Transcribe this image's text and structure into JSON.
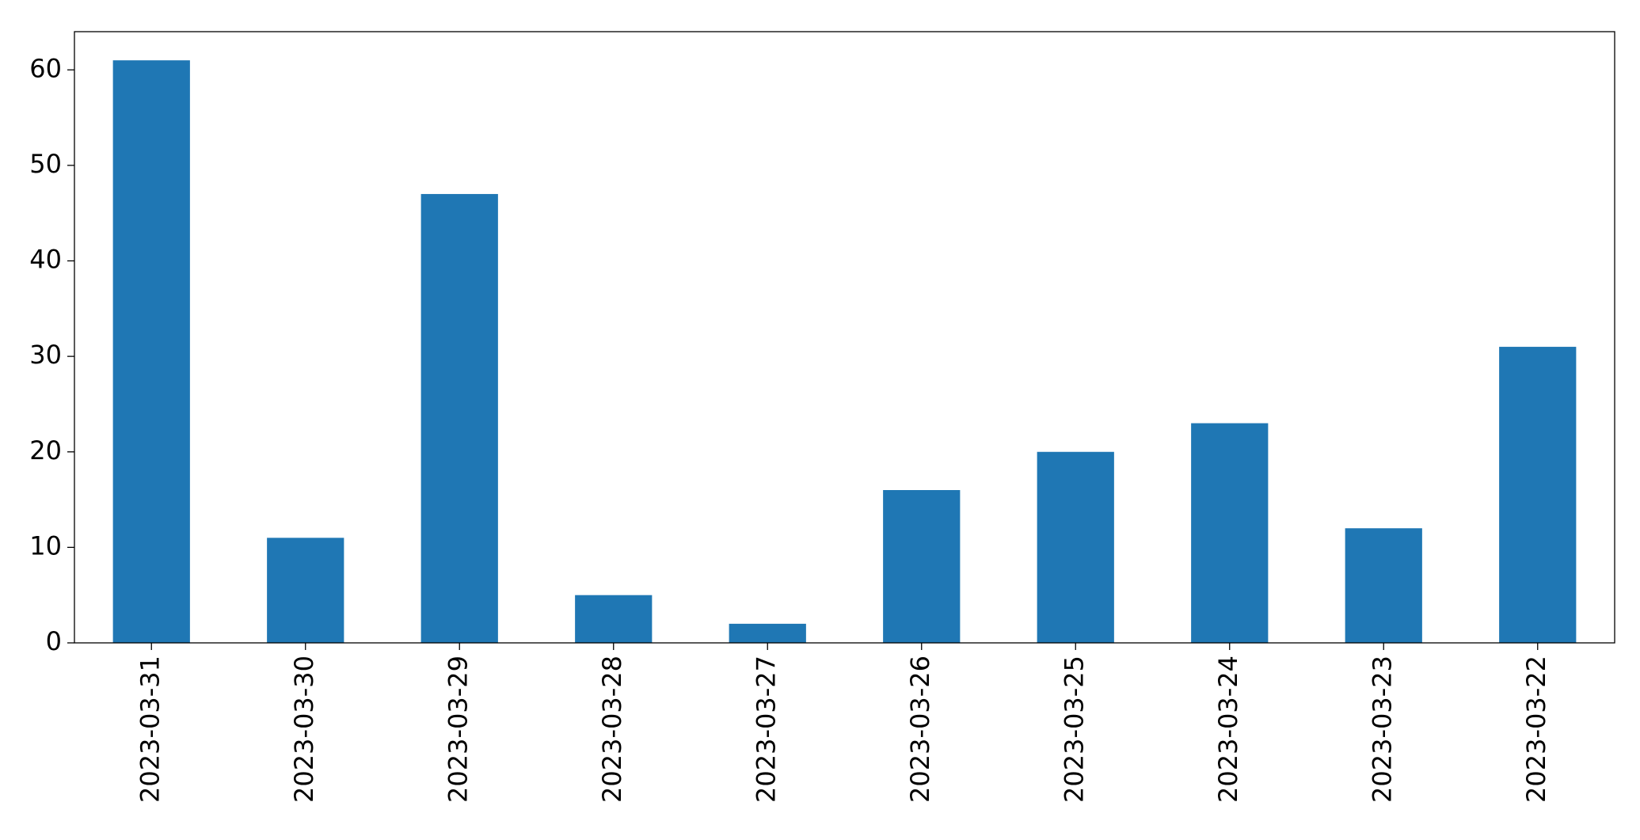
{
  "chart_data": {
    "type": "bar",
    "categories": [
      "2023-03-31",
      "2023-03-30",
      "2023-03-29",
      "2023-03-28",
      "2023-03-27",
      "2023-03-26",
      "2023-03-25",
      "2023-03-24",
      "2023-03-23",
      "2023-03-22"
    ],
    "values": [
      61,
      11,
      47,
      5,
      2,
      16,
      20,
      23,
      12,
      31
    ],
    "color": "#1f77b4",
    "ylim": [
      0,
      64
    ],
    "yticks": [
      0,
      10,
      20,
      30,
      40,
      50,
      60
    ],
    "grid": false
  }
}
